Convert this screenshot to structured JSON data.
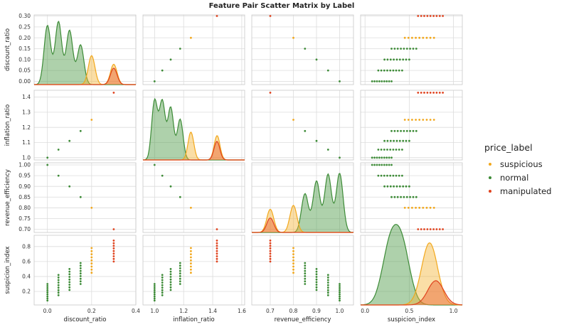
{
  "chart_data": {
    "type": "scatter",
    "title": "Feature Pair Scatter Matrix by Label",
    "variables": [
      "discount_ratio",
      "inflation_ratio",
      "revenue_efficiency",
      "suspicion_index"
    ],
    "ranges": {
      "discount_ratio": [
        -0.06,
        0.4
      ],
      "inflation_ratio": [
        0.92,
        1.62
      ],
      "revenue_efficiency": [
        0.62,
        1.06
      ],
      "suspicion_index": [
        -0.05,
        1.1
      ]
    },
    "ticks": {
      "discount_ratio": [
        0.0,
        0.2,
        0.4
      ],
      "inflation_ratio": [
        1.0,
        1.2,
        1.4,
        1.6
      ],
      "revenue_efficiency": [
        0.7,
        0.8,
        0.9,
        1.0
      ],
      "suspicion_index": [
        0.0,
        0.5,
        1.0
      ]
    },
    "tick_labels": {
      "discount_ratio": [
        "0.0",
        "0.2",
        "0.4"
      ],
      "inflation_ratio": [
        "1.0",
        "1.2",
        "1.4",
        "1.6"
      ],
      "revenue_efficiency": [
        "0.7",
        "0.8",
        "0.9",
        "1.0"
      ],
      "suspicion_index": [
        "0.0",
        "0.5",
        "1.0"
      ]
    },
    "row_ticks": {
      "discount_ratio": [
        "0.00",
        "0.05",
        "0.10",
        "0.15",
        "0.20",
        "0.25",
        "0.30"
      ],
      "inflation_ratio": [
        "1.0",
        "1.1",
        "1.2",
        "1.3",
        "1.4"
      ],
      "revenue_efficiency": [
        "0.70",
        "0.75",
        "0.80",
        "0.85",
        "0.90",
        "0.95",
        "1.00"
      ],
      "suspicion_index": [
        "0.2",
        "0.4",
        "0.6",
        "0.8"
      ]
    },
    "row_axis_ranges": {
      "discount_ratio": [
        -0.015,
        0.305
      ],
      "inflation_ratio": [
        0.985,
        1.445
      ],
      "revenue_efficiency": [
        0.685,
        1.01
      ],
      "suspicion_index": [
        0.02,
        0.95
      ]
    },
    "diag_ylim": {
      "discount_ratio": [
        0,
        36
      ],
      "inflation_ratio": [
        0,
        30
      ],
      "revenue_efficiency": [
        0,
        36
      ],
      "suspicion_index": [
        0,
        4.6
      ]
    },
    "legend": {
      "title": "price_label",
      "placement": "right",
      "entries": [
        {
          "label": "suspicious",
          "color": "#f2a81d"
        },
        {
          "label": "normal",
          "color": "#3d8b37"
        },
        {
          "label": "manipulated",
          "color": "#e0431f"
        }
      ]
    },
    "series": [
      {
        "name": "normal",
        "color": "#3d8b37",
        "fill": "#4c9a45",
        "points": [
          {
            "discount_ratio": 0.0,
            "inflation_ratio": 1.0,
            "revenue_efficiency": 1.0,
            "suspicion_index": [
              0.08,
              0.3
            ]
          },
          {
            "discount_ratio": 0.05,
            "inflation_ratio": 1.053,
            "revenue_efficiency": 0.95,
            "suspicion_index": [
              0.15,
              0.42
            ]
          },
          {
            "discount_ratio": 0.1,
            "inflation_ratio": 1.111,
            "revenue_efficiency": 0.9,
            "suspicion_index": [
              0.22,
              0.5
            ]
          },
          {
            "discount_ratio": 0.15,
            "inflation_ratio": 1.176,
            "revenue_efficiency": 0.85,
            "suspicion_index": [
              0.3,
              0.58
            ]
          }
        ],
        "kde_modes": {
          "discount_ratio": [
            [
              0.0,
              30.5
            ],
            [
              0.05,
              32.5
            ],
            [
              0.1,
              28
            ],
            [
              0.15,
              20.5
            ]
          ],
          "inflation_ratio": [
            [
              1.0,
              25.5
            ],
            [
              1.053,
              25
            ],
            [
              1.111,
              22.5
            ],
            [
              1.176,
              17.5
            ]
          ],
          "revenue_efficiency": [
            [
              0.85,
              20
            ],
            [
              0.9,
              26.5
            ],
            [
              0.95,
              30
            ],
            [
              1.0,
              30.5
            ]
          ],
          "suspicion_index": [
            [
              0.28,
              3.6
            ],
            [
              0.42,
              3.6
            ]
          ]
        }
      },
      {
        "name": "suspicious",
        "color": "#f2a81d",
        "fill": "#f4b53a",
        "points": [
          {
            "discount_ratio": 0.2,
            "inflation_ratio": 1.25,
            "revenue_efficiency": 0.8,
            "suspicion_index": [
              0.45,
              0.78
            ]
          }
        ],
        "kde_modes": {
          "discount_ratio": [
            [
              0.2,
              15
            ],
            [
              0.3,
              10.5
            ]
          ],
          "inflation_ratio": [
            [
              1.25,
              12
            ],
            [
              1.43,
              10.5
            ]
          ],
          "revenue_efficiency": [
            [
              0.7,
              12
            ],
            [
              0.8,
              14
            ]
          ],
          "suspicion_index": [
            [
              0.73,
              4.1
            ]
          ]
        }
      },
      {
        "name": "manipulated",
        "color": "#e0431f",
        "fill": "#e8602e",
        "points": [
          {
            "discount_ratio": 0.3,
            "inflation_ratio": 1.429,
            "revenue_efficiency": 0.7,
            "suspicion_index": [
              0.6,
              0.88
            ]
          }
        ],
        "kde_modes": {
          "discount_ratio": [
            [
              0.3,
              8.5
            ]
          ],
          "inflation_ratio": [
            [
              1.429,
              8
            ]
          ],
          "revenue_efficiency": [
            [
              0.7,
              7.5
            ]
          ],
          "suspicion_index": [
            [
              0.8,
              1.6
            ]
          ]
        }
      }
    ]
  }
}
